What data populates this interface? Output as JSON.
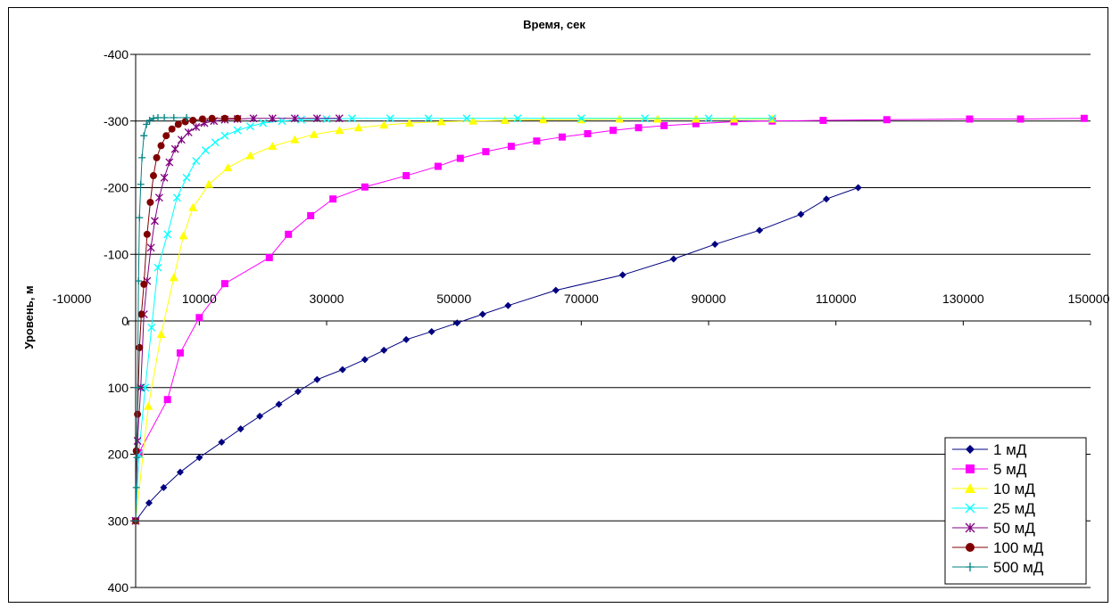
{
  "chart_data": {
    "type": "line",
    "title": "Время, сек",
    "xlabel": "Время, сек",
    "ylabel": "Уровень, м",
    "xlim": [
      -10000,
      150000
    ],
    "ylim": [
      -400,
      400
    ],
    "y_axis_reversed": true,
    "x_tick_values": [
      -10000,
      10000,
      30000,
      50000,
      70000,
      90000,
      110000,
      130000,
      150000
    ],
    "x_tick_labels": [
      "-10000",
      "10000",
      "30000",
      "50000",
      "70000",
      "90000",
      "110000",
      "130000",
      "150000"
    ],
    "y_tick_values": [
      -400,
      -300,
      -200,
      -100,
      0,
      100,
      200,
      300,
      400
    ],
    "y_tick_labels": [
      "-400",
      "-300",
      "-200",
      "-100",
      "0",
      "100",
      "200",
      "300",
      "400"
    ],
    "grid": {
      "horizontal": true,
      "vertical": false
    },
    "legend_position": "bottom-right",
    "series": [
      {
        "name": "1 мД",
        "color": "#000080",
        "marker": "diamond",
        "points": [
          [
            0,
            300
          ],
          [
            2100,
            273
          ],
          [
            4400,
            250
          ],
          [
            7000,
            227
          ],
          [
            10000,
            205
          ],
          [
            13500,
            182
          ],
          [
            16500,
            162
          ],
          [
            19500,
            143
          ],
          [
            22500,
            125
          ],
          [
            25500,
            106
          ],
          [
            28500,
            88
          ],
          [
            32500,
            73
          ],
          [
            36000,
            58
          ],
          [
            39000,
            44
          ],
          [
            42500,
            28
          ],
          [
            46500,
            16
          ],
          [
            50500,
            3
          ],
          [
            54500,
            -10
          ],
          [
            58500,
            -23
          ],
          [
            66000,
            -46
          ],
          [
            76500,
            -69
          ],
          [
            84500,
            -93
          ],
          [
            91000,
            -115
          ],
          [
            98000,
            -136
          ],
          [
            104500,
            -160
          ],
          [
            108500,
            -183
          ],
          [
            113500,
            -200
          ]
        ]
      },
      {
        "name": "5 мД",
        "color": "#FF00FF",
        "marker": "square",
        "points": [
          [
            0,
            300
          ],
          [
            500,
            198
          ],
          [
            5000,
            118
          ],
          [
            7000,
            48
          ],
          [
            10000,
            -5
          ],
          [
            14000,
            -56
          ],
          [
            21000,
            -95
          ],
          [
            24000,
            -130
          ],
          [
            27500,
            -158
          ],
          [
            31000,
            -183
          ],
          [
            36000,
            -201
          ],
          [
            42500,
            -218
          ],
          [
            47500,
            -232
          ],
          [
            51000,
            -244
          ],
          [
            55000,
            -254
          ],
          [
            59000,
            -262
          ],
          [
            63000,
            -270
          ],
          [
            67000,
            -276
          ],
          [
            71000,
            -281
          ],
          [
            75000,
            -286
          ],
          [
            79000,
            -290
          ],
          [
            83000,
            -293
          ],
          [
            88000,
            -296
          ],
          [
            94000,
            -299
          ],
          [
            100000,
            -300
          ],
          [
            108000,
            -301
          ],
          [
            118000,
            -302
          ],
          [
            131000,
            -303
          ],
          [
            139000,
            -303
          ],
          [
            149000,
            -304
          ]
        ]
      },
      {
        "name": "10 мД",
        "color": "#FFFF00",
        "marker": "triangle",
        "points": [
          [
            0,
            300
          ],
          [
            2000,
            128
          ],
          [
            4000,
            20
          ],
          [
            6000,
            -65
          ],
          [
            7500,
            -128
          ],
          [
            9000,
            -170
          ],
          [
            11500,
            -205
          ],
          [
            14500,
            -230
          ],
          [
            18000,
            -248
          ],
          [
            21500,
            -262
          ],
          [
            25000,
            -272
          ],
          [
            28000,
            -280
          ],
          [
            32000,
            -286
          ],
          [
            35000,
            -290
          ],
          [
            39000,
            -294
          ],
          [
            43000,
            -297
          ],
          [
            48000,
            -299
          ],
          [
            53000,
            -300
          ],
          [
            58000,
            -301
          ],
          [
            64000,
            -302
          ],
          [
            70000,
            -302
          ],
          [
            76000,
            -303
          ],
          [
            82000,
            -303
          ],
          [
            88000,
            -303
          ],
          [
            94000,
            -303
          ],
          [
            100000,
            -303
          ]
        ]
      },
      {
        "name": "25 мД",
        "color": "#00FFFF",
        "marker": "x",
        "points": [
          [
            0,
            300
          ],
          [
            500,
            200
          ],
          [
            1500,
            100
          ],
          [
            2500,
            10
          ],
          [
            3500,
            -80
          ],
          [
            5000,
            -130
          ],
          [
            6500,
            -185
          ],
          [
            8000,
            -215
          ],
          [
            9500,
            -240
          ],
          [
            11000,
            -256
          ],
          [
            12500,
            -268
          ],
          [
            14000,
            -278
          ],
          [
            16000,
            -286
          ],
          [
            18000,
            -292
          ],
          [
            20000,
            -297
          ],
          [
            23000,
            -300
          ],
          [
            26000,
            -302
          ],
          [
            30000,
            -303
          ],
          [
            34000,
            -304
          ],
          [
            40000,
            -304
          ],
          [
            46000,
            -304
          ],
          [
            52000,
            -304
          ],
          [
            60000,
            -304
          ],
          [
            70000,
            -304
          ],
          [
            80000,
            -304
          ],
          [
            90000,
            -304
          ],
          [
            100000,
            -304
          ]
        ]
      },
      {
        "name": "50 мД",
        "color": "#800080",
        "marker": "star",
        "points": [
          [
            0,
            300
          ],
          [
            300,
            180
          ],
          [
            800,
            100
          ],
          [
            1300,
            -10
          ],
          [
            1800,
            -60
          ],
          [
            2400,
            -110
          ],
          [
            3000,
            -150
          ],
          [
            3700,
            -185
          ],
          [
            4500,
            -215
          ],
          [
            5300,
            -238
          ],
          [
            6200,
            -258
          ],
          [
            7200,
            -272
          ],
          [
            8300,
            -283
          ],
          [
            9500,
            -291
          ],
          [
            10800,
            -297
          ],
          [
            12300,
            -300
          ],
          [
            14000,
            -302
          ],
          [
            16000,
            -303
          ],
          [
            18500,
            -304
          ],
          [
            21500,
            -304
          ],
          [
            25000,
            -304
          ],
          [
            28500,
            -304
          ],
          [
            32000,
            -304
          ]
        ]
      },
      {
        "name": "100 мД",
        "color": "#800000",
        "marker": "circle",
        "points": [
          [
            0,
            300
          ],
          [
            100,
            195
          ],
          [
            300,
            140
          ],
          [
            600,
            40
          ],
          [
            900,
            -10
          ],
          [
            1300,
            -55
          ],
          [
            1800,
            -130
          ],
          [
            2300,
            -178
          ],
          [
            2800,
            -218
          ],
          [
            3300,
            -245
          ],
          [
            4000,
            -263
          ],
          [
            4800,
            -278
          ],
          [
            5700,
            -288
          ],
          [
            6700,
            -295
          ],
          [
            7800,
            -299
          ],
          [
            9000,
            -301
          ],
          [
            10500,
            -303
          ],
          [
            12000,
            -304
          ],
          [
            14000,
            -304
          ],
          [
            16000,
            -304
          ]
        ]
      },
      {
        "name": "500 мД",
        "color": "#008080",
        "marker": "plus",
        "points": [
          [
            0,
            300
          ],
          [
            100,
            250
          ],
          [
            200,
            205
          ],
          [
            300,
            100
          ],
          [
            450,
            -60
          ],
          [
            600,
            -155
          ],
          [
            800,
            -205
          ],
          [
            1000,
            -245
          ],
          [
            1300,
            -278
          ],
          [
            1700,
            -295
          ],
          [
            2200,
            -301
          ],
          [
            2800,
            -304
          ],
          [
            3500,
            -305
          ],
          [
            4500,
            -305
          ],
          [
            6000,
            -305
          ],
          [
            8000,
            -305
          ]
        ]
      }
    ]
  }
}
